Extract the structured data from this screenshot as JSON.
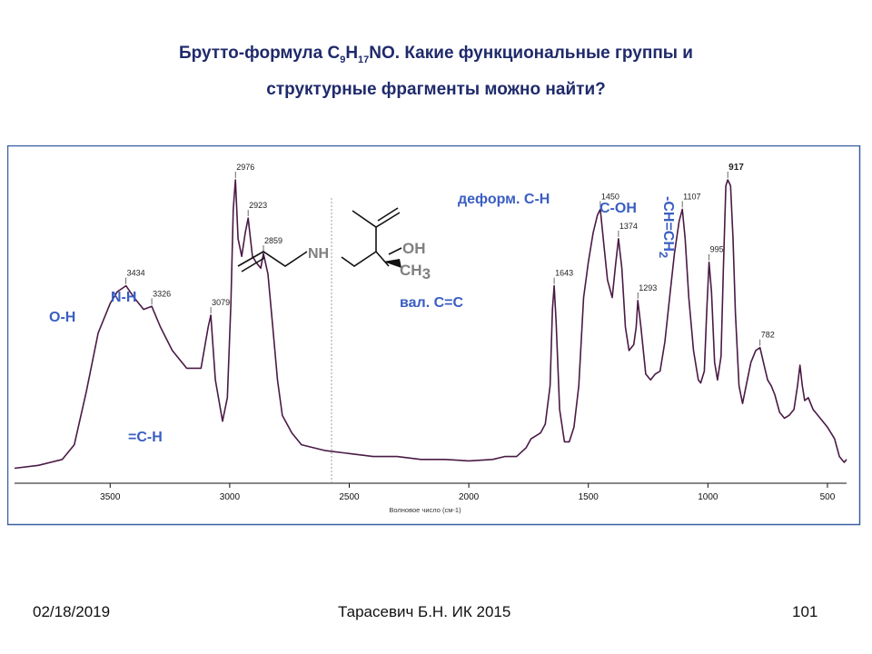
{
  "slide": {
    "title_part1": "Брутто-формула С",
    "title_sub1": "9",
    "title_mid": "Н",
    "title_sub2": "17",
    "title_part2": "NO. Какие функциональные группы и",
    "title_line2": "структурные фрагменты можно найти?"
  },
  "footer": {
    "date": "02/18/2019",
    "author": "Тарасевич Б.Н.  ИК 2015",
    "page": "101"
  },
  "structure": {
    "nh": "NH",
    "oh": "OH",
    "ch": "CH",
    "ch_sub": "3"
  },
  "chart_data": {
    "type": "line",
    "xlabel": "Волновое число (см-1)",
    "x_reversed": true,
    "xlim": [
      3900,
      420
    ],
    "x_ticks": [
      3500,
      3000,
      2500,
      2000,
      1500,
      1000,
      500
    ],
    "grid": false,
    "series": [
      {
        "color": "#4a1a45",
        "points": [
          [
            3900,
            0.02
          ],
          [
            3800,
            0.03
          ],
          [
            3700,
            0.05
          ],
          [
            3650,
            0.1
          ],
          [
            3600,
            0.28
          ],
          [
            3550,
            0.48
          ],
          [
            3500,
            0.58
          ],
          [
            3470,
            0.62
          ],
          [
            3434,
            0.64
          ],
          [
            3400,
            0.6
          ],
          [
            3360,
            0.56
          ],
          [
            3326,
            0.57
          ],
          [
            3290,
            0.5
          ],
          [
            3240,
            0.42
          ],
          [
            3180,
            0.36
          ],
          [
            3120,
            0.36
          ],
          [
            3090,
            0.5
          ],
          [
            3079,
            0.54
          ],
          [
            3060,
            0.32
          ],
          [
            3030,
            0.18
          ],
          [
            3010,
            0.26
          ],
          [
            2995,
            0.58
          ],
          [
            2985,
            0.9
          ],
          [
            2976,
            1.0
          ],
          [
            2965,
            0.8
          ],
          [
            2950,
            0.74
          ],
          [
            2935,
            0.82
          ],
          [
            2923,
            0.87
          ],
          [
            2905,
            0.74
          ],
          [
            2890,
            0.72
          ],
          [
            2870,
            0.7
          ],
          [
            2859,
            0.75
          ],
          [
            2840,
            0.68
          ],
          [
            2820,
            0.5
          ],
          [
            2800,
            0.32
          ],
          [
            2780,
            0.2
          ],
          [
            2740,
            0.14
          ],
          [
            2700,
            0.1
          ],
          [
            2600,
            0.08
          ],
          [
            2500,
            0.07
          ],
          [
            2400,
            0.06
          ],
          [
            2300,
            0.06
          ],
          [
            2200,
            0.05
          ],
          [
            2100,
            0.05
          ],
          [
            2000,
            0.045
          ],
          [
            1900,
            0.05
          ],
          [
            1850,
            0.06
          ],
          [
            1800,
            0.06
          ],
          [
            1760,
            0.09
          ],
          [
            1740,
            0.12
          ],
          [
            1720,
            0.13
          ],
          [
            1700,
            0.14
          ],
          [
            1680,
            0.17
          ],
          [
            1660,
            0.3
          ],
          [
            1650,
            0.56
          ],
          [
            1643,
            0.64
          ],
          [
            1635,
            0.52
          ],
          [
            1620,
            0.22
          ],
          [
            1600,
            0.11
          ],
          [
            1580,
            0.11
          ],
          [
            1560,
            0.16
          ],
          [
            1540,
            0.3
          ],
          [
            1520,
            0.6
          ],
          [
            1500,
            0.72
          ],
          [
            1480,
            0.82
          ],
          [
            1462,
            0.88
          ],
          [
            1450,
            0.9
          ],
          [
            1435,
            0.78
          ],
          [
            1420,
            0.66
          ],
          [
            1400,
            0.6
          ],
          [
            1385,
            0.72
          ],
          [
            1374,
            0.8
          ],
          [
            1360,
            0.7
          ],
          [
            1345,
            0.5
          ],
          [
            1330,
            0.42
          ],
          [
            1310,
            0.44
          ],
          [
            1300,
            0.5
          ],
          [
            1293,
            0.59
          ],
          [
            1280,
            0.5
          ],
          [
            1260,
            0.34
          ],
          [
            1240,
            0.32
          ],
          [
            1220,
            0.34
          ],
          [
            1200,
            0.35
          ],
          [
            1180,
            0.45
          ],
          [
            1160,
            0.6
          ],
          [
            1140,
            0.75
          ],
          [
            1120,
            0.86
          ],
          [
            1107,
            0.9
          ],
          [
            1095,
            0.8
          ],
          [
            1080,
            0.6
          ],
          [
            1060,
            0.42
          ],
          [
            1040,
            0.32
          ],
          [
            1030,
            0.31
          ],
          [
            1015,
            0.35
          ],
          [
            1005,
            0.55
          ],
          [
            995,
            0.72
          ],
          [
            985,
            0.62
          ],
          [
            972,
            0.38
          ],
          [
            960,
            0.32
          ],
          [
            945,
            0.4
          ],
          [
            935,
            0.7
          ],
          [
            925,
            0.98
          ],
          [
            917,
            1.0
          ],
          [
            905,
            0.98
          ],
          [
            895,
            0.8
          ],
          [
            885,
            0.55
          ],
          [
            870,
            0.3
          ],
          [
            855,
            0.24
          ],
          [
            840,
            0.3
          ],
          [
            820,
            0.38
          ],
          [
            800,
            0.42
          ],
          [
            782,
            0.43
          ],
          [
            765,
            0.37
          ],
          [
            750,
            0.32
          ],
          [
            735,
            0.3
          ],
          [
            720,
            0.27
          ],
          [
            700,
            0.21
          ],
          [
            680,
            0.19
          ],
          [
            660,
            0.2
          ],
          [
            640,
            0.22
          ],
          [
            625,
            0.3
          ],
          [
            615,
            0.37
          ],
          [
            605,
            0.3
          ],
          [
            595,
            0.25
          ],
          [
            580,
            0.26
          ],
          [
            560,
            0.22
          ],
          [
            540,
            0.2
          ],
          [
            520,
            0.18
          ],
          [
            500,
            0.16
          ],
          [
            470,
            0.12
          ],
          [
            450,
            0.06
          ],
          [
            430,
            0.04
          ],
          [
            420,
            0.05
          ]
        ]
      }
    ],
    "peak_labels": [
      {
        "x": 3434,
        "text": "3434"
      },
      {
        "x": 3326,
        "text": "3326"
      },
      {
        "x": 3079,
        "text": "3079"
      },
      {
        "x": 2976,
        "text": "2976"
      },
      {
        "x": 2923,
        "text": "2923"
      },
      {
        "x": 2859,
        "text": "2859"
      },
      {
        "x": 1643,
        "text": "1643"
      },
      {
        "x": 1450,
        "text": "1450"
      },
      {
        "x": 1374,
        "text": "1374"
      },
      {
        "x": 1293,
        "text": "1293"
      },
      {
        "x": 1107,
        "text": "1107"
      },
      {
        "x": 995,
        "text": "995"
      },
      {
        "x": 917,
        "text": "917"
      },
      {
        "x": 782,
        "text": "782"
      }
    ],
    "annotations": [
      {
        "text": "О-Н",
        "x": 3440
      },
      {
        "text": "N-H",
        "x": 3320
      },
      {
        "text": "=С-Н",
        "x": 3070
      },
      {
        "text": "вал. С=С",
        "x": 1643
      },
      {
        "text": "деформ. С-Н",
        "x": 1450
      },
      {
        "text": "С-ОН",
        "x": 1107
      },
      {
        "text": "-CH=CH",
        "sub": "2",
        "x": 940
      }
    ]
  }
}
